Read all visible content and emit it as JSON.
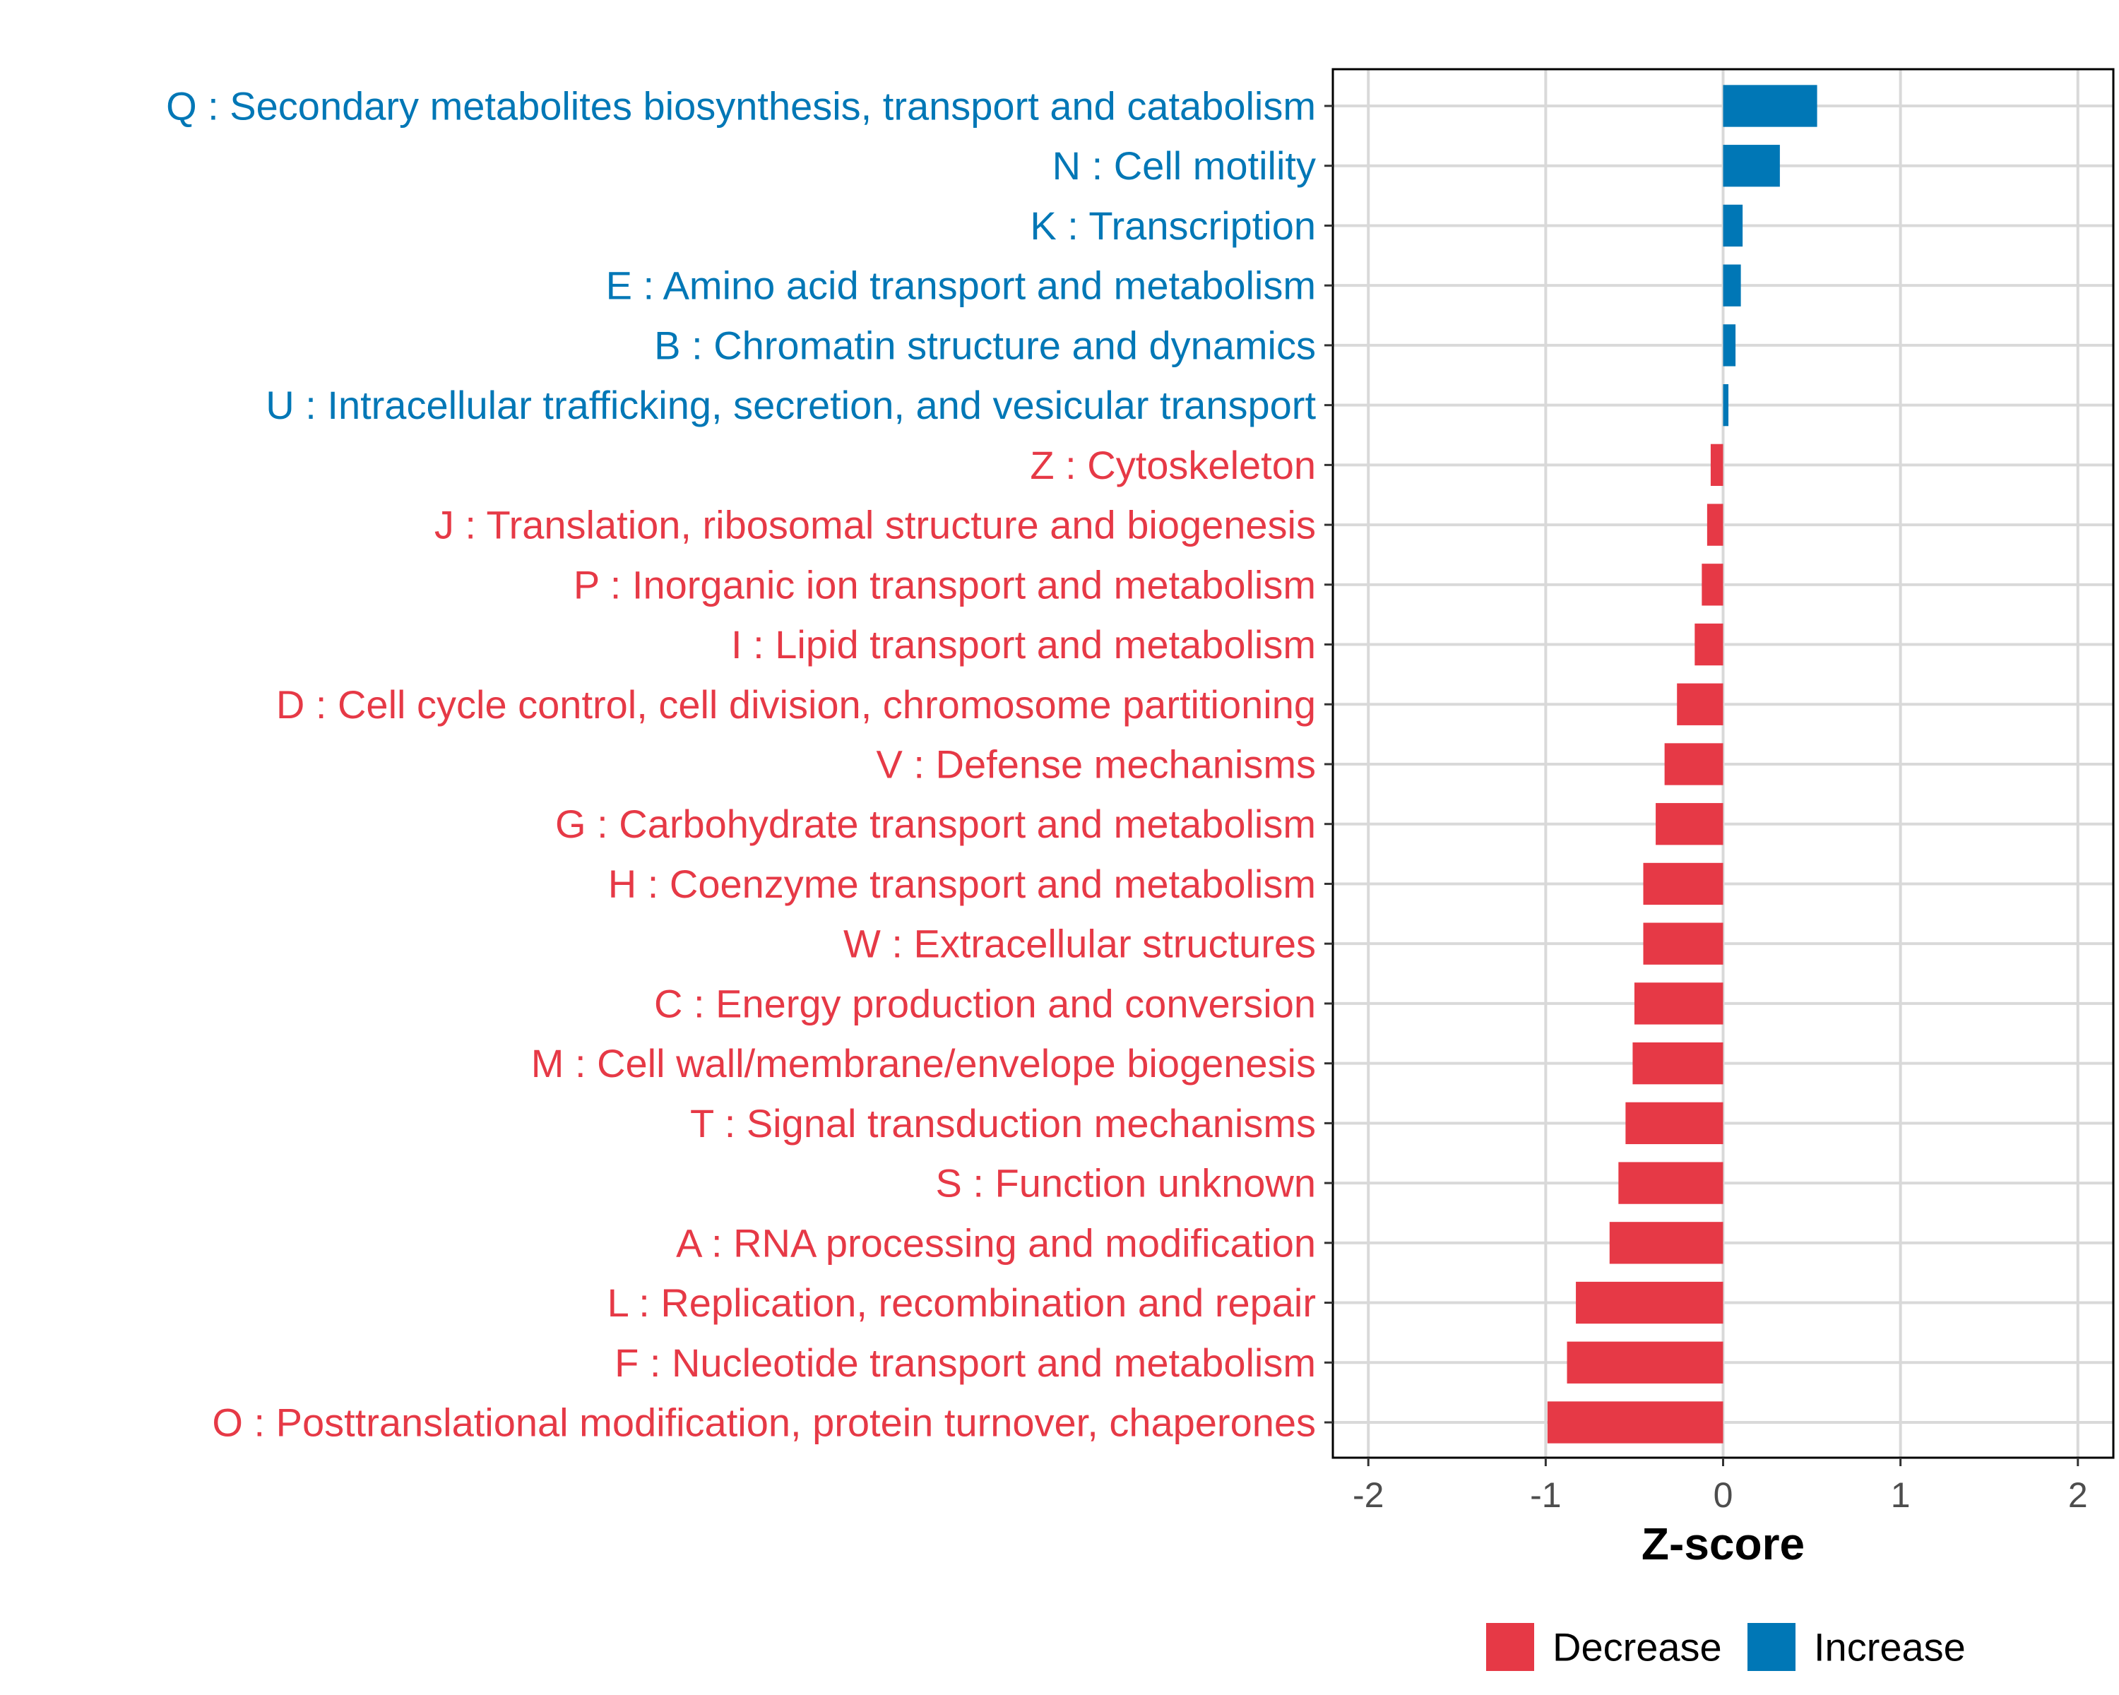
{
  "chart_data": {
    "type": "bar",
    "orientation": "horizontal",
    "title": "",
    "xlabel": "Z-score",
    "ylabel": "",
    "xlim": [
      -2.2,
      2.2
    ],
    "xticks": [
      -2,
      -1,
      0,
      1,
      2
    ],
    "xtick_labels": [
      "-2",
      "-1",
      "0",
      "1",
      "2"
    ],
    "grid": true,
    "legend_position": "bottom",
    "colors": {
      "Decrease": "#e63946",
      "Increase": "#0077b6"
    },
    "legend": [
      {
        "name": "Decrease",
        "color": "#e63946"
      },
      {
        "name": "Increase",
        "color": "#0077b6"
      }
    ],
    "categories": [
      "Q : Secondary metabolites biosynthesis, transport and catabolism",
      "N : Cell motility",
      "K : Transcription",
      "E : Amino acid transport and metabolism",
      "B : Chromatin structure and dynamics",
      "U : Intracellular trafficking, secretion, and vesicular transport",
      "Z : Cytoskeleton",
      "J : Translation, ribosomal structure and biogenesis",
      "P : Inorganic ion transport and metabolism",
      "I : Lipid transport and metabolism",
      "D : Cell cycle control, cell division, chromosome partitioning",
      "V : Defense mechanisms",
      "G : Carbohydrate transport and metabolism",
      "H : Coenzyme transport and metabolism",
      "W : Extracellular structures",
      "C : Energy production and conversion",
      "M : Cell wall/membrane/envelope biogenesis",
      "T : Signal transduction mechanisms",
      "S : Function unknown",
      "A : RNA processing and modification",
      "L : Replication, recombination and repair",
      "F : Nucleotide transport and metabolism",
      "O : Posttranslational modification, protein turnover, chaperones"
    ],
    "values": [
      0.53,
      0.32,
      0.11,
      0.1,
      0.07,
      0.03,
      -0.07,
      -0.09,
      -0.12,
      -0.16,
      -0.26,
      -0.33,
      -0.38,
      -0.45,
      -0.45,
      -0.5,
      -0.51,
      -0.55,
      -0.59,
      -0.64,
      -0.83,
      -0.88,
      -0.99
    ],
    "groups": [
      "Increase",
      "Increase",
      "Increase",
      "Increase",
      "Increase",
      "Increase",
      "Decrease",
      "Decrease",
      "Decrease",
      "Decrease",
      "Decrease",
      "Decrease",
      "Decrease",
      "Decrease",
      "Decrease",
      "Decrease",
      "Decrease",
      "Decrease",
      "Decrease",
      "Decrease",
      "Decrease",
      "Decrease",
      "Decrease"
    ]
  }
}
